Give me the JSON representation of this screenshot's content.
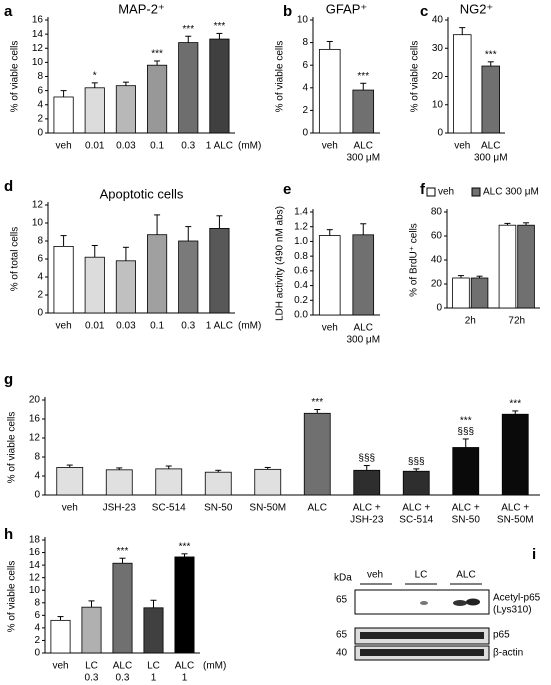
{
  "chart_data": [
    {
      "panel": "a",
      "type": "bar",
      "title": "MAP-2⁺",
      "ylabel": "% of viable cells",
      "x_unit": "(mM)",
      "categories": [
        [
          "veh"
        ],
        [
          "0.01"
        ],
        [
          "0.03"
        ],
        [
          "0.1"
        ],
        [
          "0.3"
        ],
        [
          "1 ALC"
        ]
      ],
      "values": [
        5.1,
        6.4,
        6.7,
        9.6,
        12.8,
        13.3
      ],
      "errors": [
        0.9,
        0.7,
        0.5,
        0.6,
        0.9,
        0.8
      ],
      "colors": [
        "#ffffff",
        "#dcdcdc",
        "#b8b8b8",
        "#989898",
        "#6e6e6e",
        "#404040"
      ],
      "annotations": [
        null,
        [
          "*"
        ],
        null,
        [
          "***"
        ],
        [
          "***"
        ],
        [
          "***"
        ]
      ],
      "ylim": [
        0,
        16
      ],
      "yticks": [
        0,
        2,
        4,
        6,
        8,
        10,
        12,
        14,
        16
      ]
    },
    {
      "panel": "b",
      "type": "bar",
      "title": "GFAP⁺",
      "ylabel": "% of viable cells",
      "categories": [
        [
          "veh"
        ],
        [
          "ALC",
          "300 μM"
        ]
      ],
      "values": [
        7.4,
        3.8
      ],
      "errors": [
        0.7,
        0.6
      ],
      "colors": [
        "#ffffff",
        "#707070"
      ],
      "annotations": [
        null,
        [
          "***"
        ]
      ],
      "ylim": [
        0,
        10
      ],
      "yticks": [
        0,
        2,
        4,
        6,
        8,
        10
      ]
    },
    {
      "panel": "c",
      "type": "bar",
      "title": "NG2⁺",
      "ylabel": "% of viable cells",
      "categories": [
        [
          "veh"
        ],
        [
          "ALC",
          "300 μM"
        ]
      ],
      "values": [
        34.8,
        23.7
      ],
      "errors": [
        2.5,
        1.5
      ],
      "colors": [
        "#ffffff",
        "#707070"
      ],
      "annotations": [
        null,
        [
          "***"
        ]
      ],
      "ylim": [
        0,
        40
      ],
      "yticks": [
        0,
        10,
        20,
        30,
        40
      ]
    },
    {
      "panel": "d",
      "type": "bar",
      "title": "Apoptotic cells",
      "ylabel": "% of total cells",
      "x_unit": "(mM)",
      "categories": [
        [
          "veh"
        ],
        [
          "0.01"
        ],
        [
          "0.03"
        ],
        [
          "0.1"
        ],
        [
          "0.3"
        ],
        [
          "1 ALC"
        ]
      ],
      "values": [
        7.4,
        6.2,
        5.8,
        8.7,
        8.0,
        9.4
      ],
      "errors": [
        1.2,
        1.3,
        1.5,
        2.2,
        1.6,
        1.4
      ],
      "colors": [
        "#ffffff",
        "#dcdcdc",
        "#c0c0c0",
        "#a0a0a0",
        "#7a7a7a",
        "#585858"
      ],
      "ylim": [
        0,
        12
      ],
      "yticks": [
        0,
        2,
        4,
        6,
        8,
        10,
        12
      ]
    },
    {
      "panel": "e",
      "type": "bar",
      "ylabel": "LDH activity (490 nM abs)",
      "categories": [
        [
          "veh"
        ],
        [
          "ALC",
          "300 μM"
        ]
      ],
      "values": [
        1.08,
        1.09
      ],
      "errors": [
        0.08,
        0.15
      ],
      "colors": [
        "#ffffff",
        "#707070"
      ],
      "ylim": [
        0,
        1.4
      ],
      "yticks": [
        {
          "value": 0,
          "label": "0.0"
        },
        0.2,
        0.4,
        0.6,
        0.8,
        {
          "value": 1,
          "label": "1.0"
        },
        1.2,
        1.4
      ]
    },
    {
      "panel": "f",
      "type": "grouped_bar",
      "ylabel": "% of BrdU⁺ cells",
      "legend": "top",
      "categories": [
        [
          "2h"
        ],
        [
          "72h"
        ]
      ],
      "series": [
        {
          "name": "veh",
          "color": "#ffffff",
          "values": [
            25,
            69
          ],
          "errors": [
            2,
            1.5
          ]
        },
        {
          "name": "ALC 300 μM",
          "color": "#707070",
          "values": [
            25,
            69
          ],
          "errors": [
            1.5,
            2
          ]
        }
      ],
      "ylim": [
        0,
        80
      ],
      "yticks": [
        0,
        20,
        40,
        60,
        80
      ]
    },
    {
      "panel": "g",
      "type": "bar",
      "ylabel": "% of viable cells",
      "categories": [
        [
          "veh"
        ],
        [
          "JSH-23"
        ],
        [
          "SC-514"
        ],
        [
          "SN-50"
        ],
        [
          "SN-50M"
        ],
        [
          "ALC"
        ],
        [
          "ALC +",
          "JSH-23"
        ],
        [
          "ALC +",
          "SC-514"
        ],
        [
          "ALC +",
          "SN-50"
        ],
        [
          "ALC +",
          "SN-50M"
        ]
      ],
      "values": [
        5.8,
        5.3,
        5.5,
        4.8,
        5.4,
        17.2,
        5.2,
        5.0,
        10.0,
        17.0
      ],
      "errors": [
        0.5,
        0.4,
        0.6,
        0.4,
        0.4,
        0.8,
        1.0,
        0.5,
        1.8,
        0.7
      ],
      "colors": [
        "#e0e0e0",
        "#e0e0e0",
        "#e0e0e0",
        "#e0e0e0",
        "#e0e0e0",
        "#707070",
        "#2e2e2e",
        "#2e2e2e",
        "#0a0a0a",
        "#0a0a0a"
      ],
      "annotations": [
        null,
        null,
        null,
        null,
        null,
        [
          "***"
        ],
        [
          "§§§"
        ],
        [
          "§§§"
        ],
        [
          "***",
          "§§§"
        ],
        [
          "***"
        ]
      ],
      "ylim": [
        0,
        20
      ],
      "yticks": [
        0,
        4,
        8,
        12,
        16,
        20
      ]
    },
    {
      "panel": "h",
      "type": "bar",
      "ylabel": "% of viable cells",
      "x_unit": "(mM)",
      "categories": [
        [
          "veh"
        ],
        [
          "LC",
          "0.3"
        ],
        [
          "ALC",
          "0.3"
        ],
        [
          "LC",
          "1"
        ],
        [
          "ALC",
          "1"
        ]
      ],
      "values": [
        5.2,
        7.3,
        14.3,
        7.2,
        15.3
      ],
      "errors": [
        0.6,
        1.0,
        0.8,
        1.2,
        0.5
      ],
      "colors": [
        "#ffffff",
        "#b0b0b0",
        "#707070",
        "#404040",
        "#000000"
      ],
      "annotations": [
        null,
        null,
        [
          "***"
        ],
        null,
        [
          "***"
        ]
      ],
      "ylim": [
        0,
        18
      ],
      "yticks": [
        0,
        2,
        4,
        6,
        8,
        10,
        12,
        14,
        16,
        18
      ]
    }
  ],
  "blot": {
    "panel": "i",
    "unit": "kDa",
    "lanes": [
      "veh",
      "LC",
      "ALC"
    ],
    "rows": [
      {
        "marker": "65",
        "label": [
          "Acetyl-p65",
          "(Lys310)"
        ]
      },
      {
        "marker": "65",
        "label": [
          "p65"
        ]
      },
      {
        "marker": "40",
        "label": [
          "β-actin"
        ]
      }
    ]
  }
}
